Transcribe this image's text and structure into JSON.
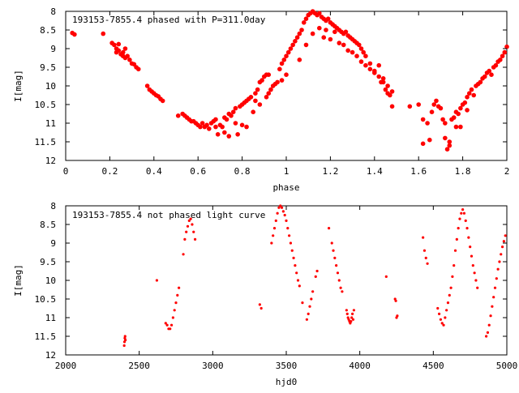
{
  "chart_data": [
    {
      "type": "scatter",
      "title": "193153-7855.4 phased with P=311.0day",
      "xlabel": "phase",
      "ylabel": "I[mag]",
      "xlim": [
        0,
        2
      ],
      "ylim": [
        12,
        8
      ],
      "y_inverted": true,
      "xticks": [
        0,
        0.2,
        0.4,
        0.6,
        0.8,
        1,
        1.2,
        1.4,
        1.6,
        1.8,
        2
      ],
      "xtick_labels": [
        "0",
        "0.2",
        "0.4",
        "0.6",
        "0.8",
        "1",
        "1.2",
        "1.4",
        "1.6",
        "1.8",
        "2"
      ],
      "yticks": [
        8,
        8.5,
        9,
        9.5,
        10,
        10.5,
        11,
        11.5,
        12
      ],
      "ytick_labels": [
        "8",
        "8.5",
        "9",
        "9.5",
        "10",
        "10.5",
        "11",
        "11.5",
        "12"
      ],
      "grid": false,
      "marker_color": "#ff0000",
      "points": [
        [
          0.03,
          8.58
        ],
        [
          0.04,
          8.62
        ],
        [
          0.17,
          8.6
        ],
        [
          0.21,
          8.85
        ],
        [
          0.22,
          8.9
        ],
        [
          0.23,
          9.0
        ],
        [
          0.23,
          9.1
        ],
        [
          0.24,
          9.05
        ],
        [
          0.24,
          8.88
        ],
        [
          0.25,
          9.15
        ],
        [
          0.26,
          9.1
        ],
        [
          0.26,
          9.2
        ],
        [
          0.27,
          9.0
        ],
        [
          0.27,
          9.25
        ],
        [
          0.28,
          9.2
        ],
        [
          0.29,
          9.3
        ],
        [
          0.3,
          9.4
        ],
        [
          0.31,
          9.42
        ],
        [
          0.32,
          9.5
        ],
        [
          0.33,
          9.55
        ],
        [
          0.37,
          10.0
        ],
        [
          0.38,
          10.1
        ],
        [
          0.39,
          10.15
        ],
        [
          0.4,
          10.2
        ],
        [
          0.41,
          10.25
        ],
        [
          0.42,
          10.28
        ],
        [
          0.43,
          10.35
        ],
        [
          0.44,
          10.4
        ],
        [
          0.51,
          10.8
        ],
        [
          0.53,
          10.75
        ],
        [
          0.54,
          10.8
        ],
        [
          0.55,
          10.85
        ],
        [
          0.56,
          10.9
        ],
        [
          0.57,
          10.95
        ],
        [
          0.58,
          10.95
        ],
        [
          0.59,
          11.0
        ],
        [
          0.6,
          11.05
        ],
        [
          0.61,
          11.1
        ],
        [
          0.62,
          11.0
        ],
        [
          0.63,
          11.1
        ],
        [
          0.64,
          11.05
        ],
        [
          0.65,
          11.15
        ],
        [
          0.66,
          11.0
        ],
        [
          0.67,
          10.95
        ],
        [
          0.68,
          11.1
        ],
        [
          0.68,
          10.9
        ],
        [
          0.69,
          11.3
        ],
        [
          0.7,
          11.05
        ],
        [
          0.71,
          11.1
        ],
        [
          0.72,
          10.85
        ],
        [
          0.72,
          11.25
        ],
        [
          0.73,
          10.9
        ],
        [
          0.74,
          10.75
        ],
        [
          0.74,
          11.35
        ],
        [
          0.75,
          10.8
        ],
        [
          0.76,
          10.7
        ],
        [
          0.77,
          11.0
        ],
        [
          0.77,
          10.6
        ],
        [
          0.78,
          11.3
        ],
        [
          0.79,
          10.55
        ],
        [
          0.8,
          10.5
        ],
        [
          0.8,
          11.05
        ],
        [
          0.81,
          10.45
        ],
        [
          0.82,
          10.4
        ],
        [
          0.82,
          11.1
        ],
        [
          0.83,
          10.35
        ],
        [
          0.84,
          10.3
        ],
        [
          0.85,
          10.7
        ],
        [
          0.86,
          10.4
        ],
        [
          0.86,
          10.2
        ],
        [
          0.87,
          10.1
        ],
        [
          0.88,
          9.9
        ],
        [
          0.88,
          10.5
        ],
        [
          0.89,
          9.85
        ],
        [
          0.9,
          9.75
        ],
        [
          0.91,
          10.3
        ],
        [
          0.91,
          9.7
        ],
        [
          0.92,
          9.7
        ],
        [
          0.92,
          10.2
        ],
        [
          0.93,
          10.1
        ],
        [
          0.94,
          10.0
        ],
        [
          0.95,
          9.95
        ],
        [
          0.96,
          9.9
        ],
        [
          0.97,
          9.55
        ],
        [
          0.98,
          9.4
        ],
        [
          0.98,
          9.85
        ],
        [
          0.99,
          9.3
        ],
        [
          1.0,
          9.2
        ],
        [
          1.0,
          9.7
        ],
        [
          1.01,
          9.1
        ],
        [
          1.02,
          9.0
        ],
        [
          1.03,
          8.9
        ],
        [
          1.04,
          8.8
        ],
        [
          1.05,
          8.7
        ],
        [
          1.06,
          8.6
        ],
        [
          1.07,
          8.5
        ],
        [
          1.08,
          8.3
        ],
        [
          1.09,
          8.2
        ],
        [
          1.1,
          8.1
        ],
        [
          1.11,
          8.05
        ],
        [
          1.12,
          8.0
        ],
        [
          1.13,
          8.05
        ],
        [
          1.14,
          8.1
        ],
        [
          1.15,
          8.05
        ],
        [
          1.16,
          8.15
        ],
        [
          1.17,
          8.2
        ],
        [
          1.18,
          8.25
        ],
        [
          1.19,
          8.2
        ],
        [
          1.2,
          8.3
        ],
        [
          1.21,
          8.35
        ],
        [
          1.22,
          8.4
        ],
        [
          1.23,
          8.45
        ],
        [
          1.24,
          8.5
        ],
        [
          1.25,
          8.55
        ],
        [
          1.26,
          8.6
        ],
        [
          1.27,
          8.55
        ],
        [
          1.28,
          8.65
        ],
        [
          1.29,
          8.7
        ],
        [
          1.3,
          8.75
        ],
        [
          1.31,
          8.8
        ],
        [
          1.32,
          8.85
        ],
        [
          1.33,
          8.9
        ],
        [
          1.34,
          9.0
        ],
        [
          1.35,
          9.1
        ],
        [
          1.36,
          9.2
        ],
        [
          1.06,
          9.3
        ],
        [
          1.09,
          8.9
        ],
        [
          1.12,
          8.6
        ],
        [
          1.15,
          8.45
        ],
        [
          1.17,
          8.7
        ],
        [
          1.18,
          8.5
        ],
        [
          1.2,
          8.75
        ],
        [
          1.22,
          8.55
        ],
        [
          1.24,
          8.85
        ],
        [
          1.26,
          8.9
        ],
        [
          1.28,
          9.05
        ],
        [
          1.3,
          9.1
        ],
        [
          1.32,
          9.2
        ],
        [
          1.34,
          9.35
        ],
        [
          1.36,
          9.45
        ],
        [
          1.38,
          9.55
        ],
        [
          1.4,
          9.65
        ],
        [
          1.42,
          9.75
        ],
        [
          1.44,
          9.9
        ],
        [
          1.46,
          10.0
        ],
        [
          1.48,
          10.15
        ],
        [
          1.38,
          9.4
        ],
        [
          1.4,
          9.6
        ],
        [
          1.42,
          9.45
        ],
        [
          1.43,
          9.9
        ],
        [
          1.44,
          9.8
        ],
        [
          1.45,
          10.1
        ],
        [
          1.46,
          10.2
        ],
        [
          1.47,
          10.25
        ],
        [
          1.48,
          10.55
        ],
        [
          1.56,
          10.55
        ],
        [
          1.6,
          10.5
        ],
        [
          1.62,
          10.9
        ],
        [
          1.62,
          11.55
        ],
        [
          1.64,
          11.0
        ],
        [
          1.65,
          11.45
        ],
        [
          1.66,
          10.7
        ],
        [
          1.67,
          10.5
        ],
        [
          1.68,
          10.4
        ],
        [
          1.69,
          10.55
        ],
        [
          1.7,
          10.6
        ],
        [
          1.71,
          10.9
        ],
        [
          1.72,
          11.0
        ],
        [
          1.72,
          11.4
        ],
        [
          1.73,
          11.7
        ],
        [
          1.74,
          11.5
        ],
        [
          1.74,
          11.6
        ],
        [
          1.75,
          10.9
        ],
        [
          1.76,
          10.85
        ],
        [
          1.77,
          10.7
        ],
        [
          1.77,
          11.1
        ],
        [
          1.78,
          10.75
        ],
        [
          1.79,
          10.6
        ],
        [
          1.79,
          11.1
        ],
        [
          1.8,
          10.5
        ],
        [
          1.81,
          10.45
        ],
        [
          1.82,
          10.3
        ],
        [
          1.82,
          10.65
        ],
        [
          1.83,
          10.2
        ],
        [
          1.84,
          10.1
        ],
        [
          1.85,
          10.25
        ],
        [
          1.86,
          10.0
        ],
        [
          1.87,
          9.95
        ],
        [
          1.88,
          9.9
        ],
        [
          1.89,
          9.8
        ],
        [
          1.9,
          9.75
        ],
        [
          1.91,
          9.65
        ],
        [
          1.92,
          9.6
        ],
        [
          1.93,
          9.7
        ],
        [
          1.94,
          9.5
        ],
        [
          1.95,
          9.45
        ],
        [
          1.96,
          9.35
        ],
        [
          1.97,
          9.3
        ],
        [
          1.98,
          9.2
        ],
        [
          1.99,
          9.1
        ],
        [
          2.0,
          8.95
        ]
      ]
    },
    {
      "type": "scatter",
      "title": "193153-7855.4 not phased light curve",
      "xlabel": "hjd0",
      "ylabel": "I[mag]",
      "xlim": [
        2000,
        5000
      ],
      "ylim": [
        12,
        8
      ],
      "y_inverted": true,
      "xticks": [
        2000,
        2500,
        3000,
        3500,
        4000,
        4500,
        5000
      ],
      "xtick_labels": [
        "2000",
        "2500",
        "3000",
        "3500",
        "4000",
        "4500",
        "5000"
      ],
      "yticks": [
        8,
        8.5,
        9,
        9.5,
        10,
        10.5,
        11,
        11.5,
        12
      ],
      "ytick_labels": [
        "8",
        "8.5",
        "9",
        "9.5",
        "10",
        "10.5",
        "11",
        "11.5",
        "12"
      ],
      "grid": false,
      "marker_color": "#ff0000",
      "points": [
        [
          2398,
          11.75
        ],
        [
          2400,
          11.65
        ],
        [
          2402,
          11.55
        ],
        [
          2404,
          11.5
        ],
        [
          2406,
          11.6
        ],
        [
          2620,
          10.0
        ],
        [
          2680,
          11.15
        ],
        [
          2690,
          11.2
        ],
        [
          2700,
          11.3
        ],
        [
          2710,
          11.3
        ],
        [
          2720,
          11.2
        ],
        [
          2730,
          11.0
        ],
        [
          2740,
          10.8
        ],
        [
          2750,
          10.6
        ],
        [
          2760,
          10.4
        ],
        [
          2770,
          10.2
        ],
        [
          2800,
          9.3
        ],
        [
          2810,
          8.9
        ],
        [
          2820,
          8.7
        ],
        [
          2830,
          8.55
        ],
        [
          2840,
          8.4
        ],
        [
          2850,
          8.35
        ],
        [
          2860,
          8.5
        ],
        [
          2870,
          8.7
        ],
        [
          2880,
          8.9
        ],
        [
          3320,
          10.65
        ],
        [
          3330,
          10.75
        ],
        [
          3400,
          9.0
        ],
        [
          3410,
          8.8
        ],
        [
          3420,
          8.6
        ],
        [
          3430,
          8.4
        ],
        [
          3440,
          8.2
        ],
        [
          3450,
          8.05
        ],
        [
          3460,
          8.0
        ],
        [
          3470,
          8.05
        ],
        [
          3480,
          8.15
        ],
        [
          3490,
          8.25
        ],
        [
          3500,
          8.4
        ],
        [
          3510,
          8.6
        ],
        [
          3520,
          8.8
        ],
        [
          3530,
          9.0
        ],
        [
          3540,
          9.2
        ],
        [
          3550,
          9.4
        ],
        [
          3560,
          9.6
        ],
        [
          3570,
          9.8
        ],
        [
          3580,
          10.0
        ],
        [
          3590,
          10.15
        ],
        [
          3610,
          10.6
        ],
        [
          3640,
          11.05
        ],
        [
          3650,
          10.9
        ],
        [
          3660,
          10.7
        ],
        [
          3670,
          10.5
        ],
        [
          3680,
          10.3
        ],
        [
          3700,
          9.9
        ],
        [
          3710,
          9.75
        ],
        [
          3790,
          8.6
        ],
        [
          3810,
          9.0
        ],
        [
          3820,
          9.2
        ],
        [
          3830,
          9.4
        ],
        [
          3840,
          9.6
        ],
        [
          3850,
          9.8
        ],
        [
          3860,
          10.0
        ],
        [
          3870,
          10.2
        ],
        [
          3880,
          10.3
        ],
        [
          3910,
          10.8
        ],
        [
          3915,
          10.9
        ],
        [
          3920,
          11.0
        ],
        [
          3925,
          11.05
        ],
        [
          3930,
          11.1
        ],
        [
          3935,
          11.15
        ],
        [
          3940,
          11.1
        ],
        [
          3945,
          11.0
        ],
        [
          3950,
          10.9
        ],
        [
          3955,
          11.05
        ],
        [
          3960,
          10.8
        ],
        [
          4180,
          9.9
        ],
        [
          4240,
          10.5
        ],
        [
          4245,
          10.55
        ],
        [
          4250,
          11.0
        ],
        [
          4255,
          10.95
        ],
        [
          4430,
          8.85
        ],
        [
          4440,
          9.2
        ],
        [
          4450,
          9.4
        ],
        [
          4460,
          9.55
        ],
        [
          4530,
          10.75
        ],
        [
          4540,
          10.9
        ],
        [
          4550,
          11.05
        ],
        [
          4560,
          11.15
        ],
        [
          4570,
          11.2
        ],
        [
          4580,
          11.0
        ],
        [
          4590,
          10.8
        ],
        [
          4600,
          10.6
        ],
        [
          4610,
          10.4
        ],
        [
          4620,
          10.2
        ],
        [
          4630,
          9.9
        ],
        [
          4640,
          9.6
        ],
        [
          4650,
          9.2
        ],
        [
          4660,
          8.9
        ],
        [
          4670,
          8.6
        ],
        [
          4680,
          8.35
        ],
        [
          4690,
          8.2
        ],
        [
          4700,
          8.1
        ],
        [
          4710,
          8.2
        ],
        [
          4720,
          8.4
        ],
        [
          4730,
          8.6
        ],
        [
          4740,
          8.85
        ],
        [
          4750,
          9.1
        ],
        [
          4760,
          9.35
        ],
        [
          4770,
          9.6
        ],
        [
          4780,
          9.8
        ],
        [
          4790,
          10.0
        ],
        [
          4800,
          10.2
        ],
        [
          4860,
          11.5
        ],
        [
          4870,
          11.4
        ],
        [
          4880,
          11.2
        ],
        [
          4890,
          10.95
        ],
        [
          4900,
          10.7
        ],
        [
          4910,
          10.45
        ],
        [
          4920,
          10.2
        ],
        [
          4930,
          9.95
        ],
        [
          4940,
          9.7
        ],
        [
          4950,
          9.5
        ],
        [
          4960,
          9.3
        ],
        [
          4970,
          9.1
        ],
        [
          4980,
          8.95
        ],
        [
          4990,
          8.8
        ]
      ]
    }
  ]
}
